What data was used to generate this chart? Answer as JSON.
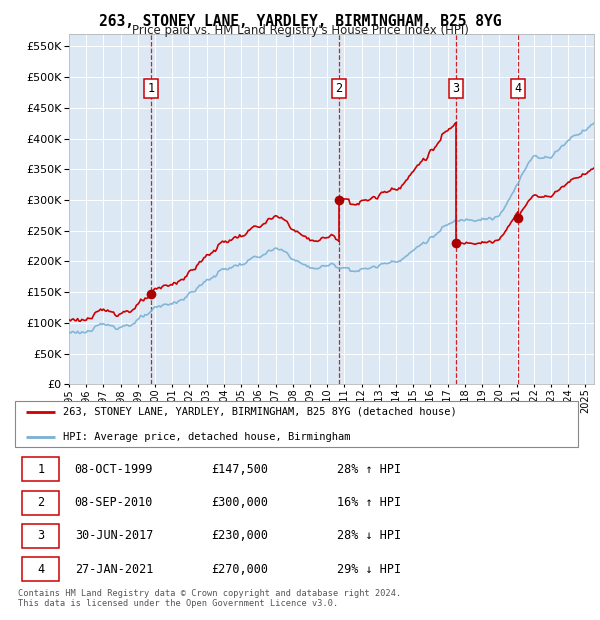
{
  "title": "263, STONEY LANE, YARDLEY, BIRMINGHAM, B25 8YG",
  "subtitle": "Price paid vs. HM Land Registry's House Price Index (HPI)",
  "ytick_values": [
    0,
    50000,
    100000,
    150000,
    200000,
    250000,
    300000,
    350000,
    400000,
    450000,
    500000,
    550000
  ],
  "ylim": [
    0,
    570000
  ],
  "xlim_start": 1995.0,
  "xlim_end": 2025.5,
  "background_color": "#dce9f5",
  "red_line_color": "#cc0000",
  "blue_line_color": "#7ab0d4",
  "sale_marker_color": "#aa0000",
  "purchases": [
    {
      "num": 1,
      "year": 1999.77,
      "price": 147500,
      "date": "08-OCT-1999",
      "pct": "28%",
      "dir": "↑"
    },
    {
      "num": 2,
      "year": 2010.68,
      "price": 300000,
      "date": "08-SEP-2010",
      "pct": "16%",
      "dir": "↑"
    },
    {
      "num": 3,
      "year": 2017.49,
      "price": 230000,
      "date": "30-JUN-2017",
      "pct": "28%",
      "dir": "↓"
    },
    {
      "num": 4,
      "year": 2021.07,
      "price": 270000,
      "date": "27-JAN-2021",
      "pct": "29%",
      "dir": "↓"
    }
  ],
  "legend_label_red": "263, STONEY LANE, YARDLEY, BIRMINGHAM, B25 8YG (detached house)",
  "legend_label_blue": "HPI: Average price, detached house, Birmingham",
  "footer": "Contains HM Land Registry data © Crown copyright and database right 2024.\nThis data is licensed under the Open Government Licence v3.0.",
  "table_rows": [
    [
      "1",
      "08-OCT-1999",
      "£147,500",
      "28% ↑ HPI"
    ],
    [
      "2",
      "08-SEP-2010",
      "£300,000",
      "16% ↑ HPI"
    ],
    [
      "3",
      "30-JUN-2017",
      "£230,000",
      "28% ↓ HPI"
    ],
    [
      "4",
      "27-JAN-2021",
      "£270,000",
      "29% ↓ HPI"
    ]
  ]
}
